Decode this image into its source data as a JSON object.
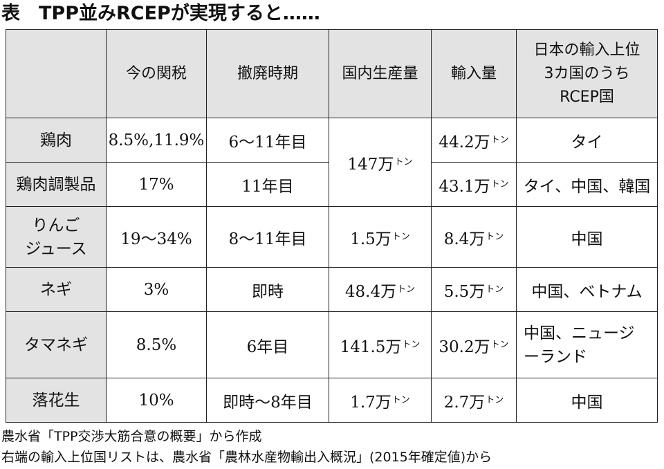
{
  "title": "表　TPP並みRCEPが実現すると……",
  "header": {
    "corner": "",
    "col1": "今の関税",
    "col2": "撤廃時期",
    "col3": "国内生産量",
    "col4": "輸入量",
    "col5_line1": "日本の輸入上位",
    "col5_line2": "3カ国のうち",
    "col5_line3": "RCEP国"
  },
  "unit_ton": "トン",
  "rows": [
    {
      "name": "鶏肉",
      "tariff": "8.5%,11.9%",
      "abolish": "6～11年目",
      "domestic": "147万",
      "imports": "44.2万",
      "countries": "タイ"
    },
    {
      "name": "鶏肉調製品",
      "tariff": "17%",
      "abolish": "11年目",
      "imports": "43.1万",
      "countries": "タイ、中国、韓国"
    },
    {
      "name_line1": "りんご",
      "name_line2": "ジュース",
      "tariff": "19～34%",
      "abolish": "8～11年目",
      "domestic": "1.5万",
      "imports": "8.4万",
      "countries": "中国"
    },
    {
      "name": "ネギ",
      "tariff": "3%",
      "abolish": "即時",
      "domestic": "48.4万",
      "imports": "5.5万",
      "countries": "中国、ベトナム"
    },
    {
      "name": "タマネギ",
      "tariff": "8.5%",
      "abolish": "6年目",
      "domestic": "141.5万",
      "imports": "30.2万",
      "countries_line1": "中国、ニュージ",
      "countries_line2": "ーランド"
    },
    {
      "name": "落花生",
      "tariff": "10%",
      "abolish": "即時～8年目",
      "domestic": "1.7万",
      "imports": "2.7万",
      "countries": "中国"
    }
  ],
  "footnotes": [
    "農水省「TPP交渉大筋合意の概要」から作成",
    "右端の輸入上位国リストは、農水省「農林水産物輸出入概況」(2015年確定値)から"
  ]
}
